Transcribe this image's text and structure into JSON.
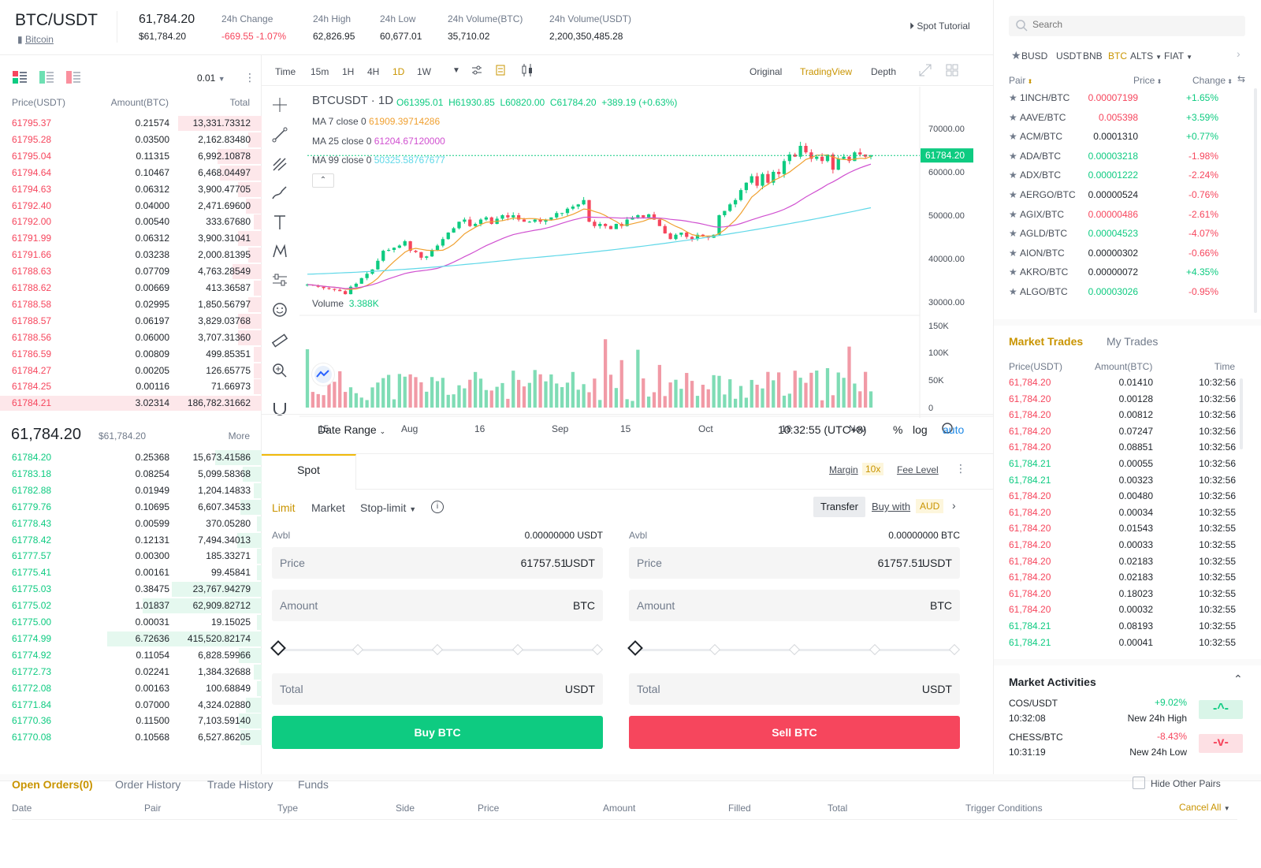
{
  "header": {
    "pair": "BTC/USDT",
    "coin_name": "Bitcoin",
    "last_price": "61,784.20",
    "last_price_usd": "$61,784.20",
    "stats": [
      {
        "label": "24h Change",
        "value": "-669.55 -1.07%",
        "color": "red"
      },
      {
        "label": "24h High",
        "value": "62,826.95",
        "color": ""
      },
      {
        "label": "24h Low",
        "value": "60,677.01",
        "color": ""
      },
      {
        "label": "24h Volume(BTC)",
        "value": "35,710.02",
        "color": ""
      },
      {
        "label": "24h Volume(USDT)",
        "value": "2,200,350,485.28",
        "color": ""
      }
    ],
    "tutorial": "Spot Tutorial"
  },
  "orderbook": {
    "precision": "0.01",
    "headers": {
      "price": "Price(USDT)",
      "amount": "Amount(BTC)",
      "total": "Total"
    },
    "asks": [
      [
        "61795.37",
        "0.21574",
        "13,331.73312",
        0.32
      ],
      [
        "61795.28",
        "0.03500",
        "2,162.83480",
        0.05
      ],
      [
        "61795.04",
        "0.11315",
        "6,992.10878",
        0.17
      ],
      [
        "61794.64",
        "0.10467",
        "6,468.04497",
        0.16
      ],
      [
        "61794.63",
        "0.06312",
        "3,900.47705",
        0.09
      ],
      [
        "61792.40",
        "0.04000",
        "2,471.69600",
        0.06
      ],
      [
        "61792.00",
        "0.00540",
        "333.67680",
        0.03
      ],
      [
        "61791.99",
        "0.06312",
        "3,900.31041",
        0.09
      ],
      [
        "61791.66",
        "0.03238",
        "2,000.81395",
        0.05
      ],
      [
        "61788.63",
        "0.07709",
        "4,763.28549",
        0.11
      ],
      [
        "61788.62",
        "0.00669",
        "413.36587",
        0.03
      ],
      [
        "61788.58",
        "0.02995",
        "1,850.56797",
        0.05
      ],
      [
        "61788.57",
        "0.06197",
        "3,829.03768",
        0.09
      ],
      [
        "61788.56",
        "0.06000",
        "3,707.31360",
        0.09
      ],
      [
        "61786.59",
        "0.00809",
        "499.85351",
        0.03
      ],
      [
        "61784.27",
        "0.00205",
        "126.65775",
        0.03
      ],
      [
        "61784.25",
        "0.00116",
        "71.66973",
        0.03
      ],
      [
        "61784.21",
        "3.02314",
        "186,782.31662",
        1.0
      ]
    ],
    "mid": {
      "price": "61,784.20",
      "usd": "$61,784.20",
      "more": "More"
    },
    "bids": [
      [
        "61784.20",
        "0.25368",
        "15,673.41586",
        0.3
      ],
      [
        "61783.18",
        "0.08254",
        "5,099.58368",
        0.12
      ],
      [
        "61782.88",
        "0.01949",
        "1,204.14833",
        0.05
      ],
      [
        "61779.76",
        "0.10695",
        "6,607.34533",
        0.14
      ],
      [
        "61778.43",
        "0.00599",
        "370.05280",
        0.03
      ],
      [
        "61778.42",
        "0.12131",
        "7,494.34013",
        0.16
      ],
      [
        "61777.57",
        "0.00300",
        "185.33271",
        0.03
      ],
      [
        "61775.41",
        "0.00161",
        "99.45841",
        0.03
      ],
      [
        "61775.03",
        "0.38475",
        "23,767.94279",
        0.58
      ],
      [
        "61775.02",
        "1.01837",
        "62,909.82712",
        0.77
      ],
      [
        "61775.00",
        "0.00031",
        "19.15025",
        0.03
      ],
      [
        "61774.99",
        "6.72636",
        "415,520.82174",
        1.0
      ],
      [
        "61774.92",
        "0.11054",
        "6,828.59966",
        0.15
      ],
      [
        "61772.73",
        "0.02241",
        "1,384.32688",
        0.05
      ],
      [
        "61772.08",
        "0.00163",
        "100.68849",
        0.03
      ],
      [
        "61771.84",
        "0.07000",
        "4,324.02880",
        0.1
      ],
      [
        "61770.36",
        "0.11500",
        "7,103.59140",
        0.15
      ],
      [
        "61770.08",
        "0.10568",
        "6,527.86205",
        0.14
      ]
    ]
  },
  "chart": {
    "timeframes": [
      "Time",
      "15m",
      "1H",
      "4H",
      "1D",
      "1W"
    ],
    "active_tf": "1D",
    "views": [
      "Original",
      "TradingView",
      "Depth"
    ],
    "active_view": "TradingView",
    "symbol": "BTCUSDT · 1D",
    "ohlc": {
      "o": "O61395.01",
      "h": "H61930.85",
      "l": "L60820.00",
      "c": "C61784.20",
      "chg": "+389.19 (+0.63%)"
    },
    "ma": [
      {
        "label": "MA 7 close 0",
        "value": "61909.39714286",
        "color": "#f0a030"
      },
      {
        "label": "MA 25 close 0",
        "value": "61204.67120000",
        "color": "#d050d0"
      },
      {
        "label": "MA 99 close 0",
        "value": "50325.58767677",
        "color": "#60d8e8"
      }
    ],
    "price_axis": [
      "70000.00",
      "60000.00",
      "50000.00",
      "40000.00",
      "30000.00"
    ],
    "price_tag": "61784.20",
    "volume_label": "Volume",
    "volume_value": "3.388K",
    "vol_axis": [
      "150K",
      "100K",
      "50K",
      "0"
    ],
    "x_axis": [
      "15",
      "Aug",
      "16",
      "Sep",
      "15",
      "Oct",
      "18",
      "Nov"
    ],
    "date_range": "Date Range",
    "clock": "10:32:55 (UTC+8)",
    "opts": [
      "%",
      "log",
      "auto"
    ]
  },
  "chart_data": {
    "type": "candlestick",
    "x_labels": [
      "15",
      "Aug",
      "16",
      "Sep",
      "15",
      "Oct",
      "18",
      "Nov"
    ],
    "ylim": [
      25000,
      72000
    ],
    "closes": [
      32000,
      31800,
      31500,
      31200,
      31000,
      30800,
      30500,
      29800,
      31500,
      32200,
      33500,
      34500,
      35500,
      37500,
      39800,
      40000,
      40500,
      41000,
      42000,
      39800,
      39500,
      38200,
      38500,
      40000,
      41000,
      42500,
      44000,
      45000,
      46500,
      47000,
      45500,
      46000,
      47000,
      47500,
      46000,
      47200,
      48000,
      47500,
      48000,
      47000,
      46500,
      46500,
      47000,
      46500,
      47000,
      47500,
      48500,
      48500,
      49500,
      50000,
      50500,
      51500,
      46500,
      45500,
      46000,
      45500,
      44800,
      46000,
      45500,
      47000,
      47500,
      48000,
      47500,
      48200,
      47000,
      45500,
      43800,
      42500,
      43500,
      44000,
      43000,
      42500,
      43500,
      43200,
      42800,
      43500,
      48000,
      49000,
      50500,
      51500,
      53800,
      55500,
      57000,
      54800,
      57500,
      55500,
      58000,
      57500,
      60500,
      62000,
      61500,
      64000,
      62500,
      61000,
      61500,
      60500,
      62000,
      58500,
      61000,
      61500,
      60500,
      62500,
      62000,
      61500,
      61784
    ]
  },
  "tools": [
    "crosshair-icon",
    "trendline-icon",
    "fib-icon",
    "brush-icon",
    "text-icon",
    "pattern-icon",
    "measure-icon",
    "emoji-icon",
    "ruler-icon",
    "zoom-icon",
    "magnet-icon"
  ],
  "trade": {
    "tab": "Spot",
    "margin": "Margin",
    "leverage": "10x",
    "fee": "Fee Level",
    "types": [
      "Limit",
      "Market",
      "Stop-limit"
    ],
    "transfer": "Transfer",
    "buy_with": "Buy with",
    "buy_cur": "AUD",
    "buy": {
      "avbl_label": "Avbl",
      "avbl": "0.00000000 USDT",
      "price_label": "Price",
      "price": "61757.51",
      "price_unit": "USDT",
      "amount_label": "Amount",
      "amount_unit": "BTC",
      "total_label": "Total",
      "total_unit": "USDT",
      "btn": "Buy BTC"
    },
    "sell": {
      "avbl_label": "Avbl",
      "avbl": "0.00000000 BTC",
      "price_label": "Price",
      "price": "61757.51",
      "price_unit": "USDT",
      "amount_label": "Amount",
      "amount_unit": "BTC",
      "total_label": "Total",
      "total_unit": "USDT",
      "btn": "Sell BTC"
    }
  },
  "markets": {
    "search_placeholder": "Search",
    "tabs": [
      "BUSD",
      "USDT",
      "BNB",
      "BTC",
      "ALTS",
      "FIAT"
    ],
    "active_tab": "BTC",
    "headers": {
      "pair": "Pair",
      "price": "Price",
      "change": "Change"
    },
    "rows": [
      [
        "1INCH/BTC",
        "0.00007199",
        "+1.65%",
        "red",
        "green"
      ],
      [
        "AAVE/BTC",
        "0.005398",
        "+3.59%",
        "red",
        "green"
      ],
      [
        "ACM/BTC",
        "0.0001310",
        "+0.77%",
        "",
        "green"
      ],
      [
        "ADA/BTC",
        "0.00003218",
        "-1.98%",
        "green",
        "red"
      ],
      [
        "ADX/BTC",
        "0.00001222",
        "-2.24%",
        "green",
        "red"
      ],
      [
        "AERGO/BTC",
        "0.00000524",
        "-0.76%",
        "",
        "red"
      ],
      [
        "AGIX/BTC",
        "0.00000486",
        "-2.61%",
        "red",
        "red"
      ],
      [
        "AGLD/BTC",
        "0.00004523",
        "-4.07%",
        "green",
        "red"
      ],
      [
        "AION/BTC",
        "0.00000302",
        "-0.66%",
        "",
        "red"
      ],
      [
        "AKRO/BTC",
        "0.00000072",
        "+4.35%",
        "",
        "green"
      ],
      [
        "ALGO/BTC",
        "0.00003026",
        "-0.95%",
        "green",
        "red"
      ]
    ]
  },
  "trades": {
    "tabs": [
      "Market Trades",
      "My Trades"
    ],
    "headers": {
      "price": "Price(USDT)",
      "amount": "Amount(BTC)",
      "time": "Time"
    },
    "rows": [
      [
        "61,784.20",
        "0.01410",
        "10:32:56",
        "red"
      ],
      [
        "61,784.20",
        "0.00128",
        "10:32:56",
        "red"
      ],
      [
        "61,784.20",
        "0.00812",
        "10:32:56",
        "red"
      ],
      [
        "61,784.20",
        "0.07247",
        "10:32:56",
        "red"
      ],
      [
        "61,784.20",
        "0.08851",
        "10:32:56",
        "red"
      ],
      [
        "61,784.21",
        "0.00055",
        "10:32:56",
        "green"
      ],
      [
        "61,784.21",
        "0.00323",
        "10:32:56",
        "green"
      ],
      [
        "61,784.20",
        "0.00480",
        "10:32:56",
        "red"
      ],
      [
        "61,784.20",
        "0.00034",
        "10:32:55",
        "red"
      ],
      [
        "61,784.20",
        "0.01543",
        "10:32:55",
        "red"
      ],
      [
        "61,784.20",
        "0.00033",
        "10:32:55",
        "red"
      ],
      [
        "61,784.20",
        "0.02183",
        "10:32:55",
        "red"
      ],
      [
        "61,784.20",
        "0.02183",
        "10:32:55",
        "red"
      ],
      [
        "61,784.20",
        "0.18023",
        "10:32:55",
        "red"
      ],
      [
        "61,784.20",
        "0.00032",
        "10:32:55",
        "red"
      ],
      [
        "61,784.21",
        "0.08193",
        "10:32:55",
        "green"
      ],
      [
        "61,784.21",
        "0.00041",
        "10:32:55",
        "green"
      ]
    ]
  },
  "activities": {
    "title": "Market Activities",
    "items": [
      {
        "pair": "COS/USDT",
        "time": "10:32:08",
        "change": "+9.02%",
        "label": "New 24h High",
        "color": "green"
      },
      {
        "pair": "CHESS/BTC",
        "time": "10:31:19",
        "change": "-8.43%",
        "label": "New 24h Low",
        "color": "red"
      }
    ]
  },
  "orders": {
    "tabs": [
      "Open Orders(0)",
      "Order History",
      "Trade History",
      "Funds"
    ],
    "hide_label": "Hide Other Pairs",
    "columns": [
      "Date",
      "Pair",
      "Type",
      "Side",
      "Price",
      "Amount",
      "Filled",
      "Total",
      "Trigger Conditions"
    ],
    "cancel_all": "Cancel All"
  }
}
